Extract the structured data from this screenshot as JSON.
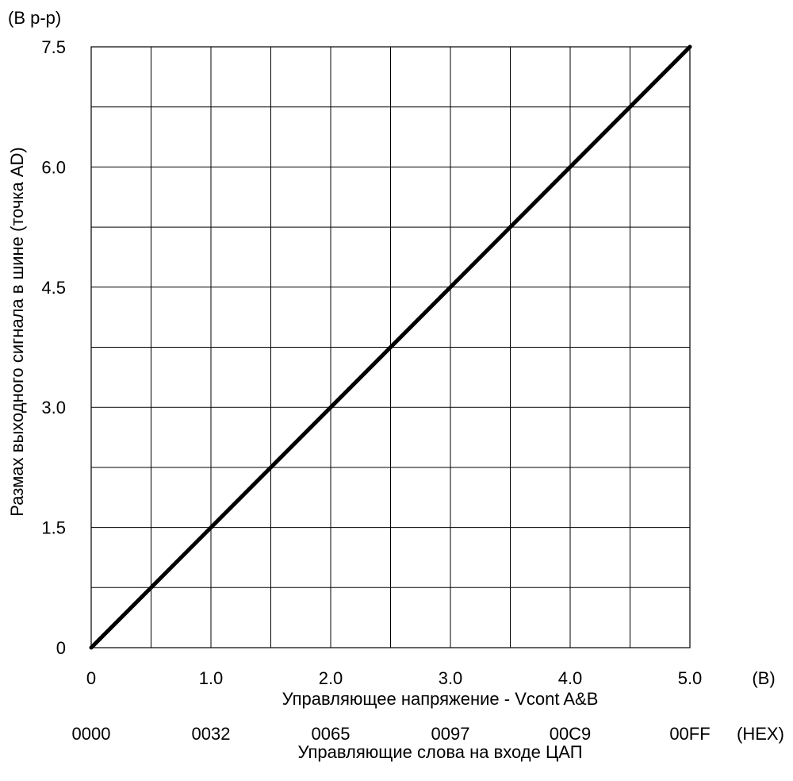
{
  "chart_data": {
    "type": "line",
    "y_unit": "(В p-p)",
    "x_unit": "(В)",
    "xlabel": "Управляющее напряжение - Vcont A&B",
    "ylabel": "Размах выходного сигнала в шине (точка AD)",
    "xlim": [
      0,
      5.0
    ],
    "ylim": [
      0,
      7.5
    ],
    "x_ticks": [
      0,
      0.5,
      1.0,
      1.5,
      2.0,
      2.5,
      3.0,
      3.5,
      4.0,
      4.5,
      5.0
    ],
    "y_ticks": [
      0,
      0.75,
      1.5,
      2.25,
      3.0,
      3.75,
      4.5,
      5.25,
      6.0,
      6.75,
      7.5
    ],
    "x_tick_labels": [
      {
        "value": 0,
        "label": "0"
      },
      {
        "value": 1.0,
        "label": "1.0"
      },
      {
        "value": 2.0,
        "label": "2.0"
      },
      {
        "value": 3.0,
        "label": "3.0"
      },
      {
        "value": 4.0,
        "label": "4.0"
      },
      {
        "value": 5.0,
        "label": "5.0"
      }
    ],
    "y_tick_labels": [
      {
        "value": 0,
        "label": "0"
      },
      {
        "value": 1.5,
        "label": "1.5"
      },
      {
        "value": 3.0,
        "label": "3.0"
      },
      {
        "value": 4.5,
        "label": "4.5"
      },
      {
        "value": 6.0,
        "label": "6.0"
      },
      {
        "value": 7.5,
        "label": "7.5"
      }
    ],
    "grid": true,
    "series": [
      {
        "x": [
          0,
          5.0
        ],
        "y": [
          0,
          7.5
        ],
        "color": "#000000"
      }
    ],
    "secondary_axis": {
      "values": [
        0,
        1.0,
        2.0,
        3.0,
        4.0,
        5.0
      ],
      "labels": [
        "0000",
        "0032",
        "0065",
        "0097",
        "00C9",
        "00FF"
      ],
      "unit": "(HEX)",
      "label": "Управляющие слова на входе ЦАП"
    }
  }
}
